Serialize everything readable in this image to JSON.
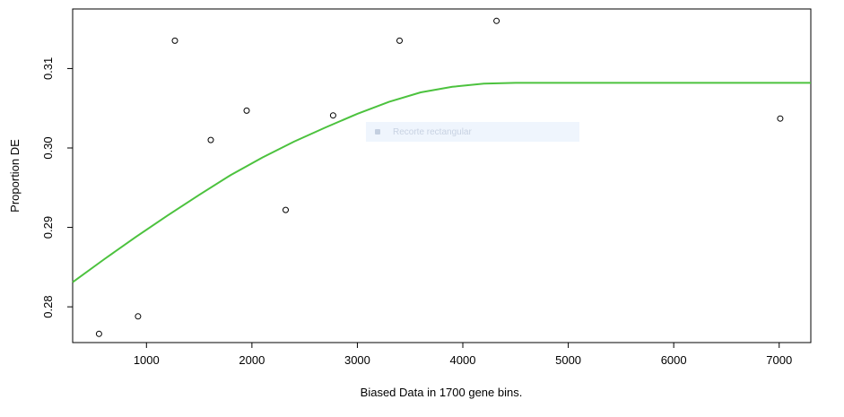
{
  "chart_data": {
    "type": "scatter",
    "xlabel": "Biased Data in 1700 gene bins.",
    "ylabel": "Proportion DE",
    "xlim": [
      300,
      7300
    ],
    "ylim": [
      0.2755,
      0.3175
    ],
    "x_ticks": [
      1000,
      2000,
      3000,
      4000,
      5000,
      6000,
      7000
    ],
    "y_ticks": [
      0.28,
      0.29,
      0.3,
      0.31
    ],
    "y_tick_labels": [
      "0.28",
      "0.29",
      "0.30",
      "0.31"
    ],
    "grid": false,
    "points": [
      {
        "x": 550,
        "y": 0.2766
      },
      {
        "x": 920,
        "y": 0.2788
      },
      {
        "x": 1270,
        "y": 0.3135
      },
      {
        "x": 1610,
        "y": 0.301
      },
      {
        "x": 1950,
        "y": 0.3047
      },
      {
        "x": 2320,
        "y": 0.2922
      },
      {
        "x": 2770,
        "y": 0.3041
      },
      {
        "x": 3400,
        "y": 0.3135
      },
      {
        "x": 4320,
        "y": 0.316
      },
      {
        "x": 7010,
        "y": 0.3037
      }
    ],
    "fit_line": {
      "color": "#4cc23e",
      "x": [
        300,
        600,
        900,
        1200,
        1500,
        1800,
        2100,
        2400,
        2700,
        3000,
        3300,
        3600,
        3900,
        4200,
        4500,
        5000,
        5500,
        6000,
        6500,
        7000,
        7300
      ],
      "y": [
        0.2831,
        0.286,
        0.2888,
        0.2915,
        0.2941,
        0.2966,
        0.2988,
        0.3008,
        0.3026,
        0.3043,
        0.3058,
        0.307,
        0.3077,
        0.3081,
        0.3082,
        0.3082,
        0.3082,
        0.3082,
        0.3082,
        0.3082,
        0.3082
      ]
    }
  },
  "overlay": {
    "label": "Recorte rectangular",
    "icon": "snip-icon"
  }
}
